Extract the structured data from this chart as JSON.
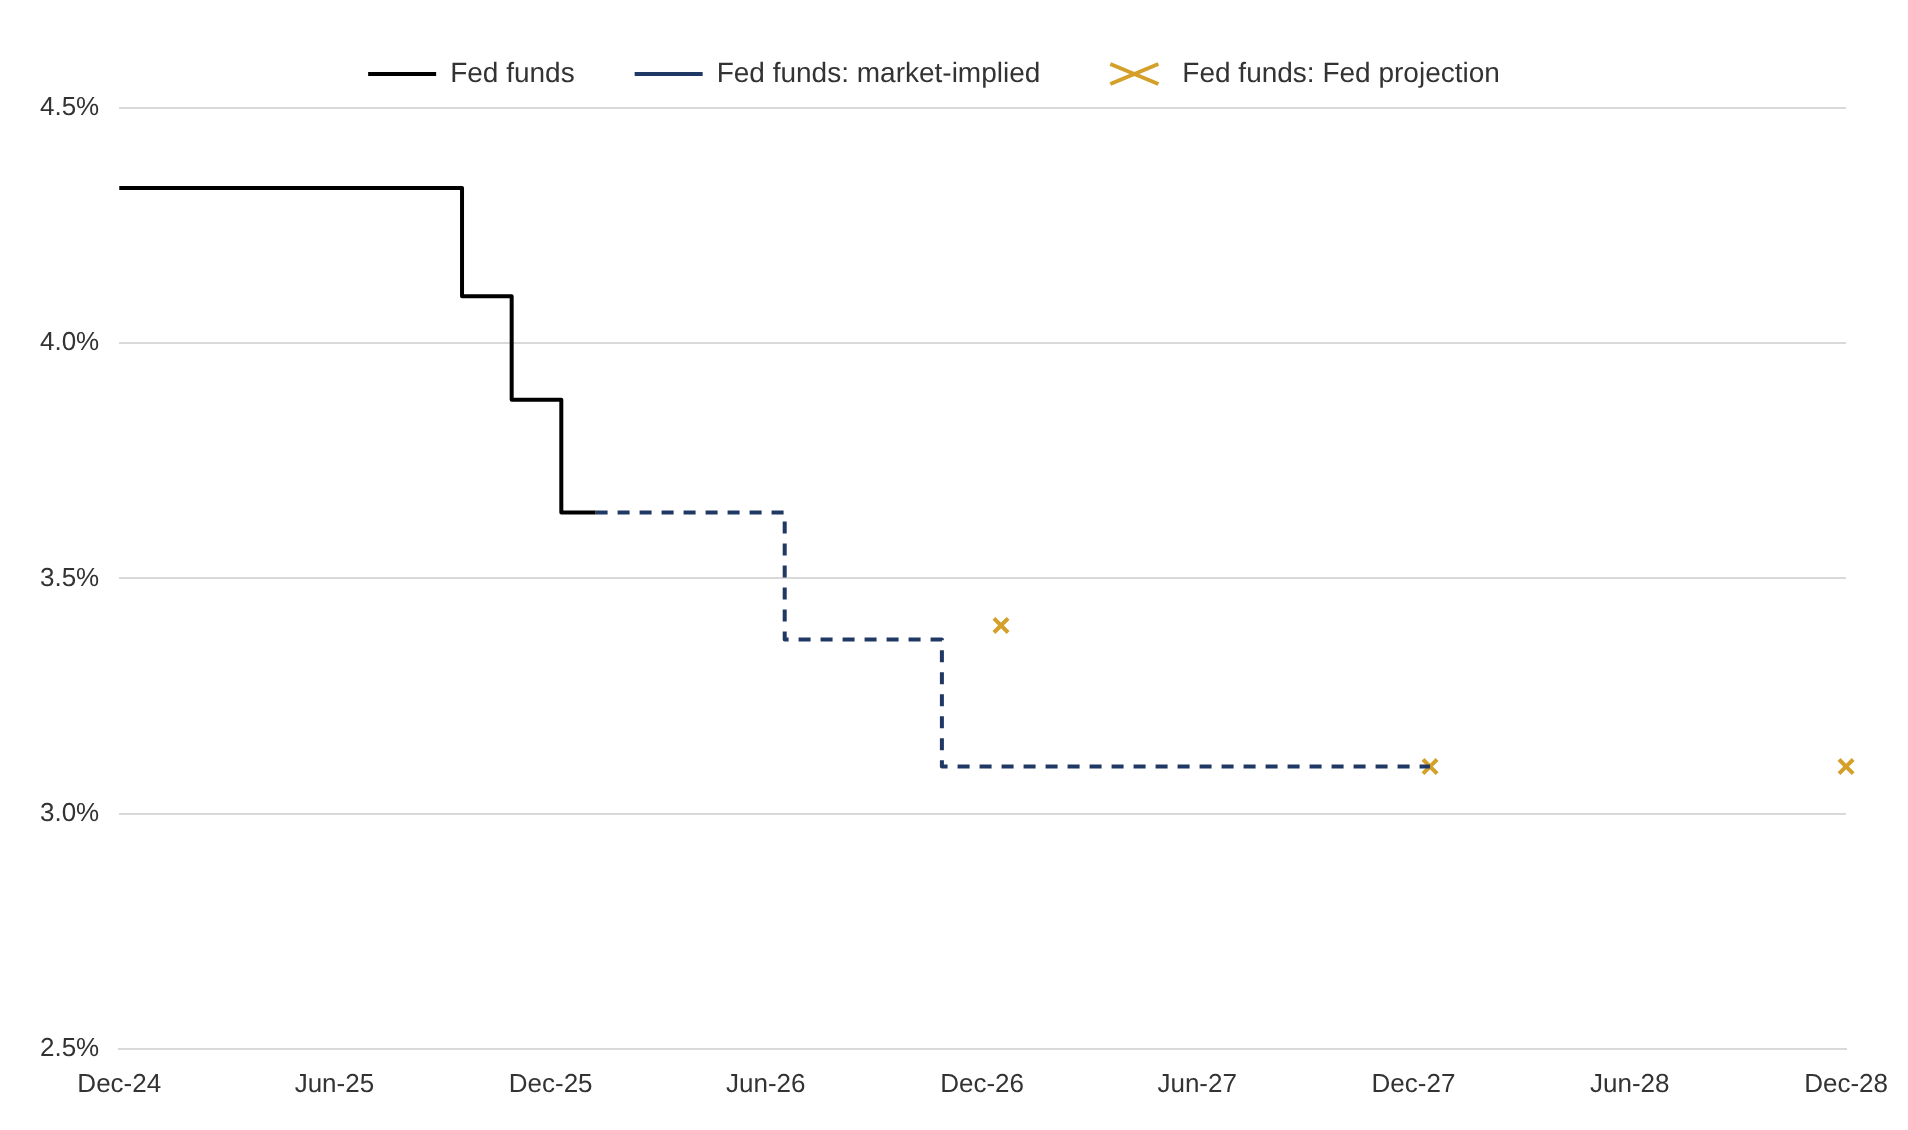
{
  "chart_data": {
    "type": "step",
    "xlim": [
      "2024-12-01",
      "2028-12-01"
    ],
    "xticks": [
      {
        "value": "2024-12-01",
        "label": "Dec-24"
      },
      {
        "value": "2025-06-01",
        "label": "Jun-25"
      },
      {
        "value": "2025-12-01",
        "label": "Dec-25"
      },
      {
        "value": "2026-06-01",
        "label": "Jun-26"
      },
      {
        "value": "2026-12-01",
        "label": "Dec-26"
      },
      {
        "value": "2027-06-01",
        "label": "Jun-27"
      },
      {
        "value": "2027-12-01",
        "label": "Dec-27"
      },
      {
        "value": "2028-06-01",
        "label": "Jun-28"
      },
      {
        "value": "2028-12-01",
        "label": "Dec-28"
      }
    ],
    "ylim": [
      2.5,
      4.5
    ],
    "yticks": [
      {
        "value": 2.5,
        "label": "2.5%"
      },
      {
        "value": 3,
        "label": "3.0%"
      },
      {
        "value": 3.5,
        "label": "3.5%"
      },
      {
        "value": 4,
        "label": "4.0%"
      },
      {
        "value": 4.5,
        "label": "4.5%"
      }
    ],
    "grid": "y",
    "legend": "top",
    "series": [
      {
        "name": "Fed funds",
        "type": "step",
        "color": "#000000",
        "line_style": "solid",
        "x": [
          "2024-12-01",
          "2025-09-17",
          "2025-10-29",
          "2025-12-10",
          "2026-01-08"
        ],
        "values": [
          4.33,
          4.1,
          3.88,
          3.64,
          3.64
        ]
      },
      {
        "name": "Fed funds: market-implied",
        "type": "step",
        "color": "#1f3864",
        "line_style": "dashed",
        "x": [
          "2026-01-08",
          "2026-06-17",
          "2026-10-28",
          "2027-12-15"
        ],
        "values": [
          3.64,
          3.37,
          3.1,
          3.1
        ]
      },
      {
        "name": "Fed funds: Fed projection",
        "type": "scatter",
        "color": "#d4a02a",
        "marker": "cross",
        "x": [
          "2026-12-17",
          "2027-12-15",
          "2028-12-01"
        ],
        "values": [
          3.4,
          3.1,
          3.1
        ]
      }
    ]
  }
}
